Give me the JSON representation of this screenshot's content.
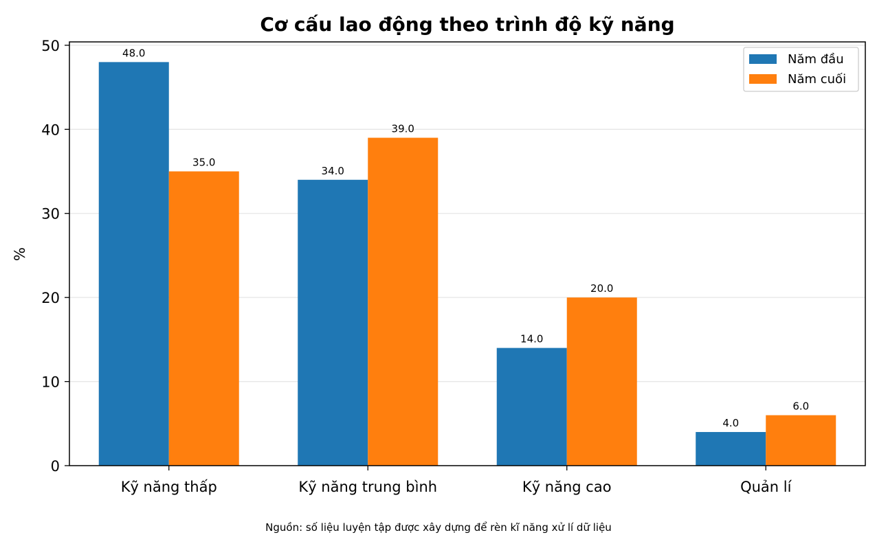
{
  "chart_data": {
    "type": "bar",
    "title": "Cơ cấu lao động theo trình độ kỹ năng",
    "xlabel": "",
    "ylabel": "%",
    "categories": [
      "Kỹ năng thấp",
      "Kỹ năng trung bình",
      "Kỹ năng cao",
      "Quản lí"
    ],
    "series": [
      {
        "name": "Năm đầu",
        "values": [
          48.0,
          34.0,
          14.0,
          4.0
        ],
        "color": "#1f77b4"
      },
      {
        "name": "Năm cuối",
        "values": [
          35.0,
          39.0,
          20.0,
          6.0
        ],
        "color": "#ff7f0e"
      }
    ],
    "ylim": [
      0,
      50.4
    ],
    "yticks": [
      0,
      10,
      20,
      30,
      40,
      50
    ],
    "grid": "y",
    "legend": "top-right",
    "value_format": "one-decimal",
    "footnote": "Nguồn: số liệu luyện tập được xây dựng để rèn kĩ năng xử lí dữ liệu"
  }
}
